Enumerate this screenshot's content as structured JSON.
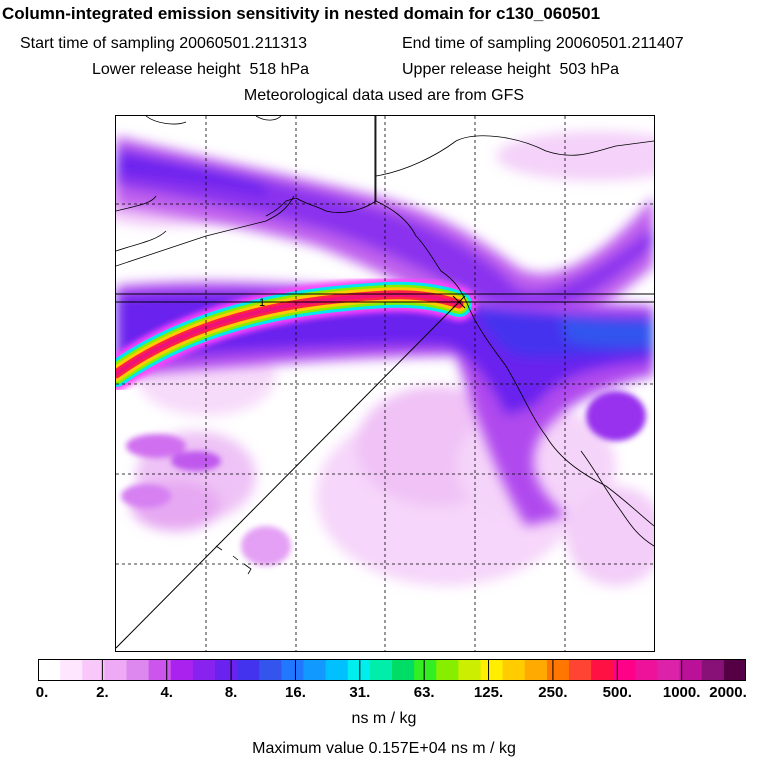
{
  "chart_data": {
    "type": "heatmap",
    "title": "Column-integrated emission sensitivity in nested domain for c130_060501",
    "start_label": "Start time of sampling",
    "start_value": "20060501.211313",
    "end_label": "End time of sampling",
    "end_value": "20060501.211407",
    "lower_label": "Lower release height",
    "lower_value": "518 hPa",
    "upper_label": "Upper release height",
    "upper_value": "503 hPa",
    "met_note": "Meteorological data used are from GFS",
    "colorbar_ticks": [
      "0.",
      "2.",
      "4.",
      "8.",
      "16.",
      "31.",
      "63.",
      "125.",
      "250.",
      "500.",
      "1000.",
      "2000."
    ],
    "colorbar_units": "ns m / kg",
    "max_value_label": "Maximum value  0.157E+04 ns m / kg",
    "release_marker": "1",
    "colors": [
      "#ffffff",
      "#ffe6ff",
      "#f8c8fb",
      "#eeaaf5",
      "#dd88ee",
      "#cc55ee",
      "#aa22ee",
      "#8822ee",
      "#6a22ee",
      "#4433ee",
      "#3355ee",
      "#2277ff",
      "#1199ff",
      "#00c0ff",
      "#00eeee",
      "#00eeaa",
      "#00dd66",
      "#33ee22",
      "#88ee00",
      "#ccee00",
      "#ffee00",
      "#ffcc00",
      "#ffaa00",
      "#ff7700",
      "#ff4433",
      "#ff1144",
      "#ff0088",
      "#ee1199",
      "#dd22aa",
      "#bb1199",
      "#881177",
      "#550044"
    ]
  }
}
